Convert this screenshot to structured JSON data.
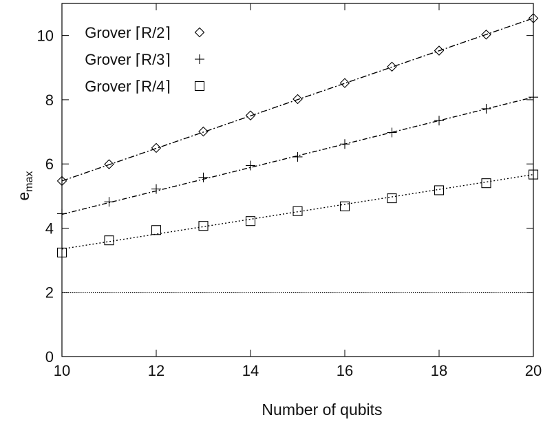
{
  "chart_data": {
    "type": "scatter",
    "xlabel": "Number of qubits",
    "ylabel": "e",
    "ylabel_subscript": "max",
    "xlim": [
      10,
      20
    ],
    "ylim": [
      0,
      11
    ],
    "x_ticks": [
      "10",
      "12",
      "14",
      "16",
      "18",
      "20"
    ],
    "y_ticks": [
      "0",
      "2",
      "4",
      "6",
      "8",
      "10"
    ],
    "grid": false,
    "legend_position": "top-left",
    "series": [
      {
        "name": "Grover ⌈R/2⌉",
        "marker": "diamond",
        "x": [
          10,
          11,
          12,
          13,
          14,
          15,
          16,
          17,
          18,
          19,
          20
        ],
        "y": [
          5.47,
          5.99,
          6.5,
          7.01,
          7.51,
          8.02,
          8.52,
          9.03,
          9.53,
          10.03,
          10.54
        ],
        "fit": [
          5.47,
          10.54
        ]
      },
      {
        "name": "Grover ⌈R/3⌉",
        "marker": "plus",
        "x": [
          10,
          11,
          12,
          13,
          14,
          15,
          16,
          17,
          18,
          19,
          20
        ],
        "y": [
          4.45,
          4.82,
          5.22,
          5.58,
          5.95,
          6.22,
          6.62,
          6.98,
          7.35,
          7.72,
          8.08
        ],
        "fit": [
          4.43,
          8.08
        ]
      },
      {
        "name": "Grover ⌈R/4⌉",
        "marker": "square",
        "x": [
          10,
          11,
          12,
          13,
          14,
          15,
          16,
          17,
          18,
          19,
          20
        ],
        "y": [
          3.24,
          3.62,
          3.94,
          4.07,
          4.22,
          4.53,
          4.68,
          4.93,
          5.18,
          5.4,
          5.67
        ],
        "fit": [
          3.35,
          5.67
        ]
      }
    ],
    "reference_line": {
      "y": 2
    }
  }
}
